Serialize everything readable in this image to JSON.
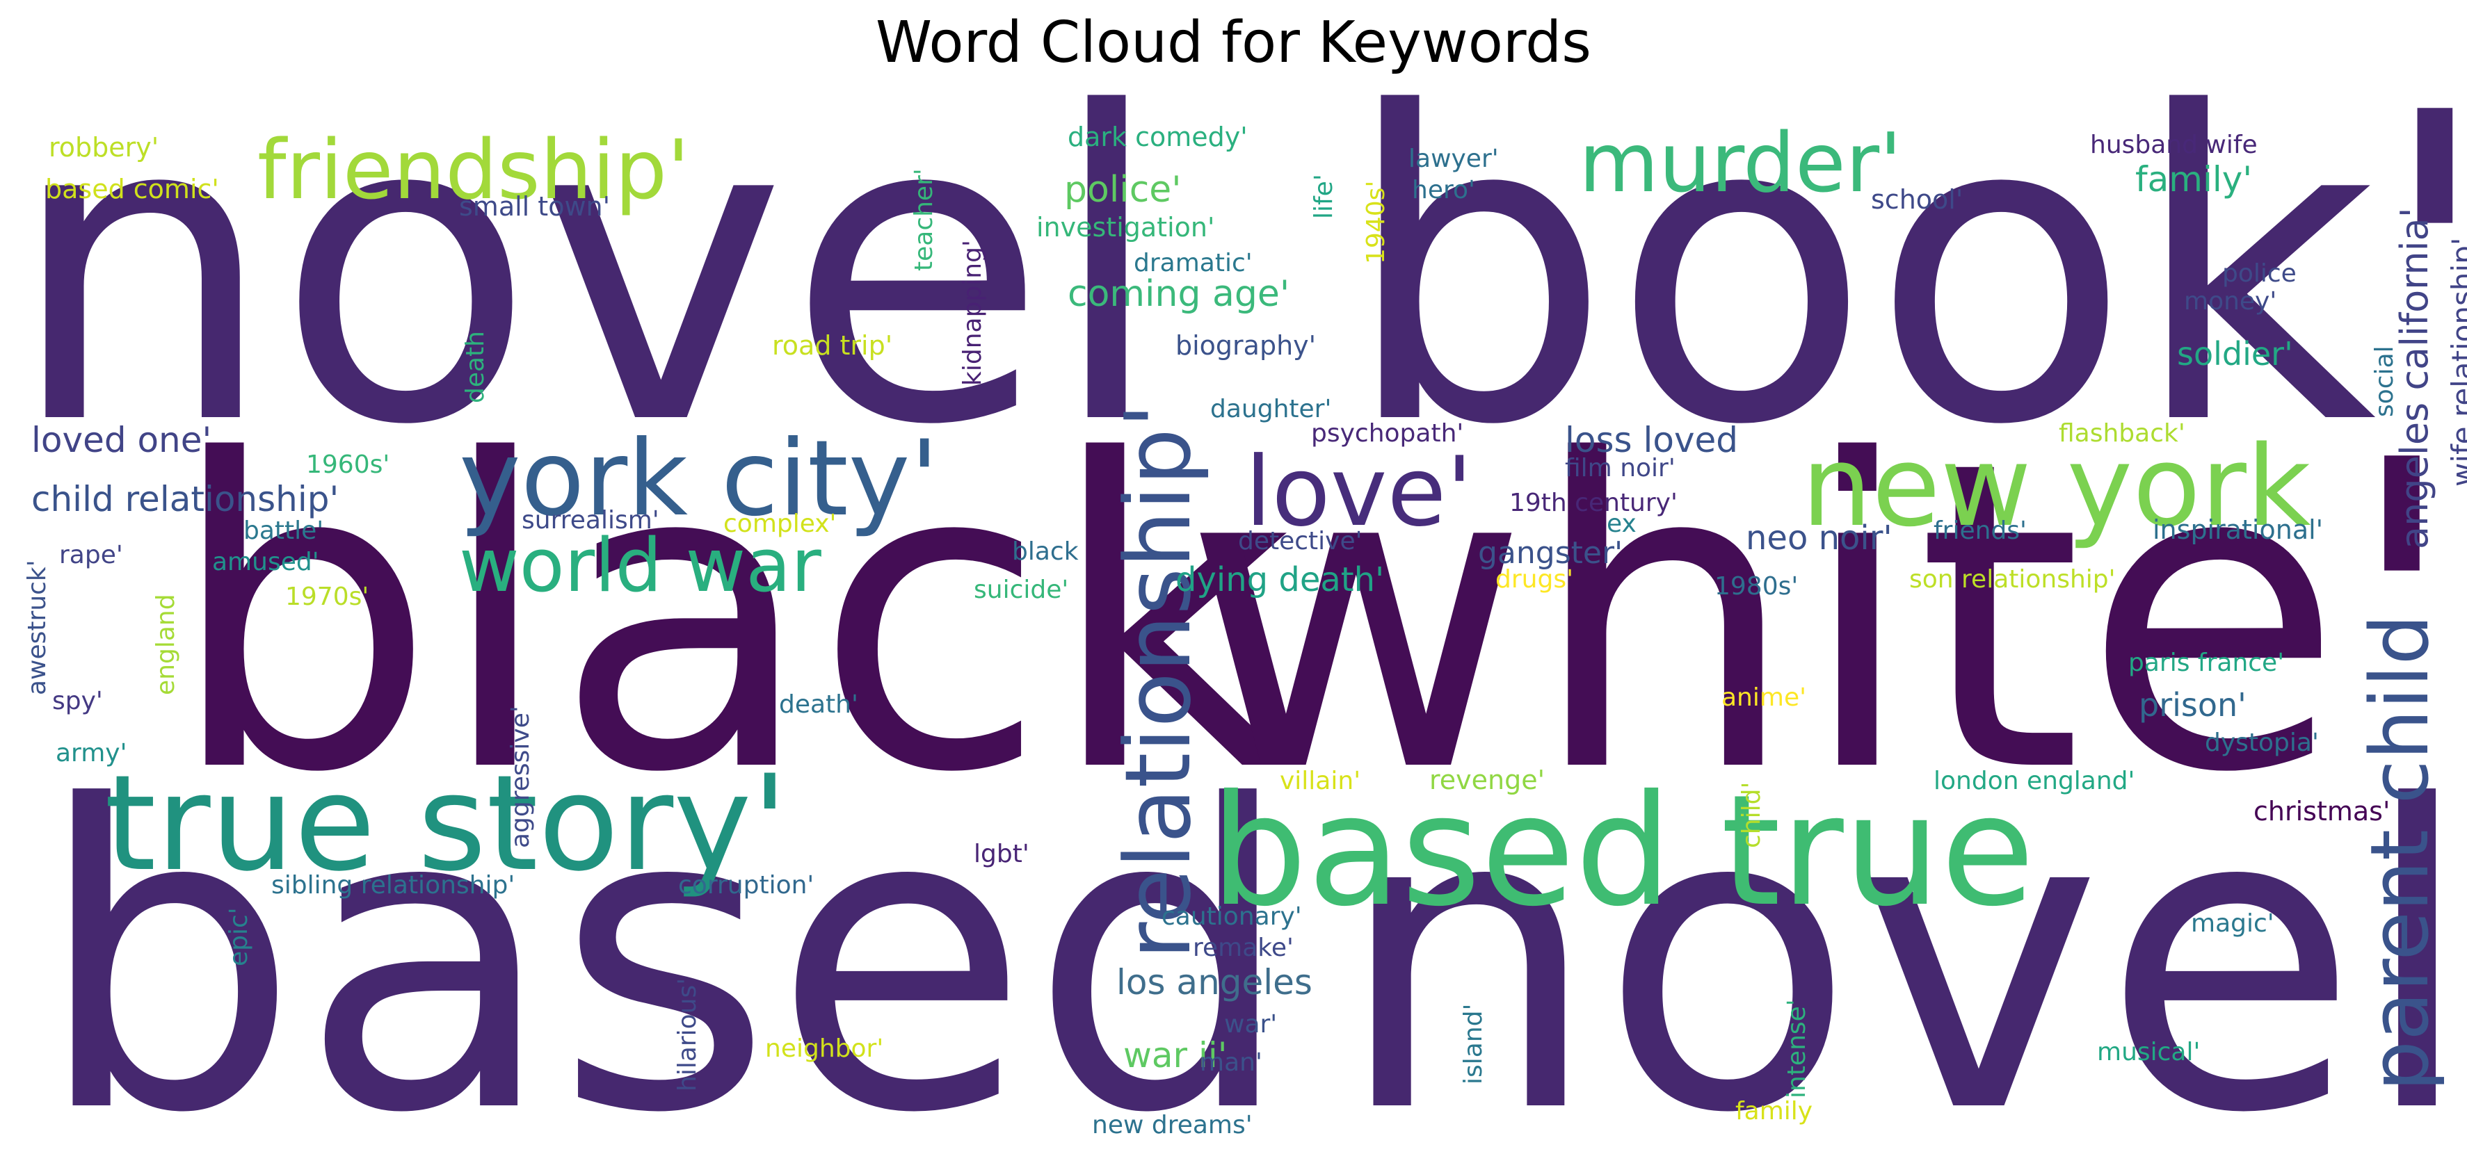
{
  "chart_data": {
    "type": "wordcloud",
    "title": "Word Cloud for Keywords",
    "words": [
      {
        "text": "novel",
        "size": 1.0,
        "color": "#46286f",
        "rot": 0
      },
      {
        "text": "book'",
        "size": 0.97,
        "color": "#46286f",
        "rot": 0
      },
      {
        "text": "black",
        "size": 0.92,
        "color": "#440d55",
        "rot": 0
      },
      {
        "text": "white'",
        "size": 0.92,
        "color": "#440d55",
        "rot": 0
      },
      {
        "text": "based",
        "size": 0.95,
        "color": "#46286f",
        "rot": 0
      },
      {
        "text": "novel",
        "size": 0.98,
        "color": "#46286f",
        "rot": 0
      },
      {
        "text": "true story'",
        "size": 0.5,
        "color": "#20927f",
        "rot": 0
      },
      {
        "text": "based true",
        "size": 0.57,
        "color": "#3fbc72",
        "rot": 0
      },
      {
        "text": "york city'",
        "size": 0.4,
        "color": "#355f8d",
        "rot": 0
      },
      {
        "text": "new york",
        "size": 0.42,
        "color": "#7bd150",
        "rot": 0
      },
      {
        "text": "friendship'",
        "size": 0.3,
        "color": "#a2d93a",
        "rot": 0
      },
      {
        "text": "murder'",
        "size": 0.3,
        "color": "#3bb97b",
        "rot": 0
      },
      {
        "text": "love'",
        "size": 0.36,
        "color": "#472d7b",
        "rot": 0
      },
      {
        "text": "world war",
        "size": 0.28,
        "color": "#29af7f",
        "rot": 0
      },
      {
        "text": "relationship'",
        "size": 0.34,
        "color": "#3a538b",
        "rot": 90
      },
      {
        "text": "parent child",
        "size": 0.31,
        "color": "#3a538b",
        "rot": 90
      },
      {
        "text": "angeles california'",
        "size": 0.15,
        "color": "#414487",
        "rot": 90
      },
      {
        "text": "wife relationship'",
        "size": 0.12,
        "color": "#414487",
        "rot": 90
      },
      {
        "text": "los angeles",
        "size": 0.14,
        "color": "#3f6e8c",
        "rot": 0
      },
      {
        "text": "war ii'",
        "size": 0.14,
        "color": "#5ec962",
        "rot": 0
      },
      {
        "text": "coming age'",
        "size": 0.14,
        "color": "#3bb97b",
        "rot": 0
      },
      {
        "text": "police'",
        "size": 0.14,
        "color": "#5ec962",
        "rot": 0
      },
      {
        "text": "loved one'",
        "size": 0.14,
        "color": "#414487",
        "rot": 0
      },
      {
        "text": "child relationship'",
        "size": 0.14,
        "color": "#3a538b",
        "rot": 0
      },
      {
        "text": "dying death'",
        "size": 0.13,
        "color": "#20a386",
        "rot": 0
      },
      {
        "text": "loss loved",
        "size": 0.14,
        "color": "#3a538b",
        "rot": 0
      },
      {
        "text": "neo noir'",
        "size": 0.13,
        "color": "#3b528b",
        "rot": 0
      },
      {
        "text": "gangster'",
        "size": 0.12,
        "color": "#3b528b",
        "rot": 0
      },
      {
        "text": "family'",
        "size": 0.14,
        "color": "#2ab07f",
        "rot": 0
      },
      {
        "text": "soldier'",
        "size": 0.13,
        "color": "#22a884",
        "rot": 0
      },
      {
        "text": "prison'",
        "size": 0.13,
        "color": "#31688e",
        "rot": 0
      },
      {
        "text": "christmas'",
        "size": 0.1,
        "color": "#440154",
        "rot": 0
      },
      {
        "text": "robbery'",
        "size": 0.1,
        "color": "#bddf26",
        "rot": 0
      },
      {
        "text": "based comic'",
        "size": 0.1,
        "color": "#d0e11c",
        "rot": 0
      },
      {
        "text": "small town'",
        "size": 0.1,
        "color": "#3e4a89",
        "rot": 0
      },
      {
        "text": "dark comedy'",
        "size": 0.1,
        "color": "#2ab07f",
        "rot": 0
      },
      {
        "text": "investigation'",
        "size": 0.1,
        "color": "#35b779",
        "rot": 0
      },
      {
        "text": "dramatic'",
        "size": 0.09,
        "color": "#2a788e",
        "rot": 0
      },
      {
        "text": "lawyer'",
        "size": 0.09,
        "color": "#2d708e",
        "rot": 0
      },
      {
        "text": "hero'",
        "size": 0.09,
        "color": "#2d708e",
        "rot": 0
      },
      {
        "text": "husband wife",
        "size": 0.1,
        "color": "#482878",
        "rot": 0
      },
      {
        "text": "school'",
        "size": 0.1,
        "color": "#3e4989",
        "rot": 0
      },
      {
        "text": "police",
        "size": 0.09,
        "color": "#3e4a89",
        "rot": 0
      },
      {
        "text": "money'",
        "size": 0.09,
        "color": "#3e4a89",
        "rot": 0
      },
      {
        "text": "biography'",
        "size": 0.1,
        "color": "#3b528b",
        "rot": 0
      },
      {
        "text": "road trip'",
        "size": 0.1,
        "color": "#c8e020",
        "rot": 0
      },
      {
        "text": "daughter'",
        "size": 0.1,
        "color": "#2c728e",
        "rot": 0
      },
      {
        "text": "psychopath'",
        "size": 0.09,
        "color": "#482878",
        "rot": 0
      },
      {
        "text": "film noir'",
        "size": 0.09,
        "color": "#3f4788",
        "rot": 0
      },
      {
        "text": "19th century'",
        "size": 0.1,
        "color": "#482777",
        "rot": 0
      },
      {
        "text": "ex",
        "size": 0.09,
        "color": "#26828e",
        "rot": 0
      },
      {
        "text": "flashback'",
        "size": 0.09,
        "color": "#addc30",
        "rot": 0
      },
      {
        "text": "friends'",
        "size": 0.09,
        "color": "#2d708e",
        "rot": 0
      },
      {
        "text": "inspirational'",
        "size": 0.1,
        "color": "#2d708e",
        "rot": 0
      },
      {
        "text": "1960s'",
        "size": 0.09,
        "color": "#35b779",
        "rot": 0
      },
      {
        "text": "battle'",
        "size": 0.09,
        "color": "#2a788e",
        "rot": 0
      },
      {
        "text": "surrealism'",
        "size": 0.09,
        "color": "#3e4a89",
        "rot": 0
      },
      {
        "text": "complex'",
        "size": 0.09,
        "color": "#d2e21b",
        "rot": 0
      },
      {
        "text": "detective'",
        "size": 0.09,
        "color": "#3e4a89",
        "rot": 0
      },
      {
        "text": "black",
        "size": 0.09,
        "color": "#2e6e8e",
        "rot": 0
      },
      {
        "text": "rape'",
        "size": 0.09,
        "color": "#414487",
        "rot": 0
      },
      {
        "text": "amused'",
        "size": 0.09,
        "color": "#21918c",
        "rot": 0
      },
      {
        "text": "1970s'",
        "size": 0.09,
        "color": "#bade28",
        "rot": 0
      },
      {
        "text": "suicide'",
        "size": 0.09,
        "color": "#35b779",
        "rot": 0
      },
      {
        "text": "drugs'",
        "size": 0.09,
        "color": "#fde725",
        "rot": 0
      },
      {
        "text": "1980s'",
        "size": 0.09,
        "color": "#2e6e8e",
        "rot": 0
      },
      {
        "text": "son relationship'",
        "size": 0.09,
        "color": "#bddf26",
        "rot": 0
      },
      {
        "text": "paris france'",
        "size": 0.09,
        "color": "#22a785",
        "rot": 0
      },
      {
        "text": "dystopia'",
        "size": 0.09,
        "color": "#2d708e",
        "rot": 0
      },
      {
        "text": "spy'",
        "size": 0.09,
        "color": "#443983",
        "rot": 0
      },
      {
        "text": "death'",
        "size": 0.09,
        "color": "#2c728e",
        "rot": 0
      },
      {
        "text": "anime'",
        "size": 0.09,
        "color": "#fde725",
        "rot": 0
      },
      {
        "text": "army'",
        "size": 0.09,
        "color": "#21918c",
        "rot": 0
      },
      {
        "text": "villain'",
        "size": 0.09,
        "color": "#d8e219",
        "rot": 0
      },
      {
        "text": "revenge'",
        "size": 0.1,
        "color": "#90d743",
        "rot": 0
      },
      {
        "text": "london england'",
        "size": 0.09,
        "color": "#22a884",
        "rot": 0
      },
      {
        "text": "lgbt'",
        "size": 0.09,
        "color": "#482475",
        "rot": 0
      },
      {
        "text": "sibling relationship'",
        "size": 0.09,
        "color": "#2c728e",
        "rot": 0
      },
      {
        "text": "corruption'",
        "size": 0.09,
        "color": "#31688e",
        "rot": 0
      },
      {
        "text": "cautionary'",
        "size": 0.09,
        "color": "#2c728e",
        "rot": 0
      },
      {
        "text": "remake'",
        "size": 0.09,
        "color": "#3e4989",
        "rot": 0
      },
      {
        "text": "magic'",
        "size": 0.09,
        "color": "#2a788e",
        "rot": 0
      },
      {
        "text": "war'",
        "size": 0.09,
        "color": "#3b528b",
        "rot": 0
      },
      {
        "text": "man'",
        "size": 0.09,
        "color": "#3b528b",
        "rot": 0
      },
      {
        "text": "neighbor'",
        "size": 0.09,
        "color": "#d2e21b",
        "rot": 0
      },
      {
        "text": "musical'",
        "size": 0.09,
        "color": "#22a884",
        "rot": 0
      },
      {
        "text": "new dreams'",
        "size": 0.09,
        "color": "#2c728e",
        "rot": 0
      },
      {
        "text": "family",
        "size": 0.09,
        "color": "#d8e219",
        "rot": 0
      },
      {
        "text": "teacher'",
        "size": 0.09,
        "color": "#35b779",
        "rot": 90
      },
      {
        "text": "kidnapping'",
        "size": 0.09,
        "color": "#482173",
        "rot": 90
      },
      {
        "text": "life'",
        "size": 0.09,
        "color": "#21a685",
        "rot": 90
      },
      {
        "text": "1940s'",
        "size": 0.09,
        "color": "#d8e219",
        "rot": 90
      },
      {
        "text": "death",
        "size": 0.09,
        "color": "#2db27d",
        "rot": 90
      },
      {
        "text": "awestruck'",
        "size": 0.09,
        "color": "#3b528b",
        "rot": 90
      },
      {
        "text": "england",
        "size": 0.09,
        "color": "#a5db36",
        "rot": 90
      },
      {
        "text": "aggressive'",
        "size": 0.09,
        "color": "#3e4a89",
        "rot": 90
      },
      {
        "text": "epic'",
        "size": 0.09,
        "color": "#26828e",
        "rot": 90
      },
      {
        "text": "hilarious'",
        "size": 0.09,
        "color": "#3e4a89",
        "rot": 90
      },
      {
        "text": "island'",
        "size": 0.09,
        "color": "#2a788e",
        "rot": 90
      },
      {
        "text": "intense'",
        "size": 0.09,
        "color": "#2db27d",
        "rot": 90
      },
      {
        "text": "child'",
        "size": 0.09,
        "color": "#b5de2b",
        "rot": 90
      },
      {
        "text": "social",
        "size": 0.09,
        "color": "#2c728e",
        "rot": 90
      }
    ]
  }
}
